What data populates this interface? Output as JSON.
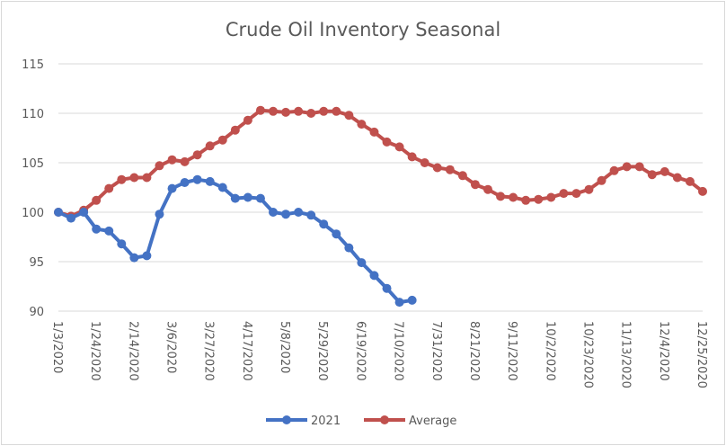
{
  "chart_data": {
    "type": "line",
    "title": "Crude Oil Inventory Seasonal",
    "xlabel": "",
    "ylabel": "",
    "ylim": [
      90,
      115
    ],
    "yticks": [
      90,
      95,
      100,
      105,
      110,
      115
    ],
    "grid": "horizontal",
    "legend": "bottom",
    "x_tick_labels": [
      "1/3/2020",
      "1/24/2020",
      "2/14/2020",
      "3/6/2020",
      "3/27/2020",
      "4/17/2020",
      "5/8/2020",
      "5/29/2020",
      "6/19/2020",
      "7/10/2020",
      "7/31/2020",
      "8/21/2020",
      "9/11/2020",
      "10/2/2020",
      "10/23/2020",
      "11/13/2020",
      "12/4/2020",
      "12/25/2020"
    ],
    "x_weeks_per_tick": 3,
    "series": [
      {
        "name": "2021",
        "color": "#4472c4",
        "values": [
          100.0,
          99.4,
          100.0,
          98.3,
          98.1,
          96.8,
          95.4,
          95.6,
          99.8,
          102.4,
          103.0,
          103.3,
          103.1,
          102.5,
          101.4,
          101.5,
          101.4,
          100.0,
          99.8,
          100.0,
          99.7,
          98.8,
          97.8,
          96.4,
          94.9,
          93.6,
          92.3,
          90.9,
          91.1
        ]
      },
      {
        "name": "Average",
        "color": "#c0504d",
        "values": [
          100.0,
          99.6,
          100.2,
          101.2,
          102.4,
          103.3,
          103.5,
          103.5,
          104.7,
          105.3,
          105.1,
          105.8,
          106.7,
          107.3,
          108.3,
          109.3,
          110.3,
          110.2,
          110.1,
          110.2,
          110.0,
          110.2,
          110.2,
          109.8,
          108.9,
          108.1,
          107.1,
          106.6,
          105.6,
          105.0,
          104.5,
          104.3,
          103.7,
          102.8,
          102.3,
          101.6,
          101.5,
          101.2,
          101.3,
          101.5,
          101.9,
          101.9,
          102.3,
          103.2,
          104.2,
          104.6,
          104.6,
          103.8,
          104.1,
          103.5,
          103.1,
          102.1
        ]
      }
    ]
  }
}
